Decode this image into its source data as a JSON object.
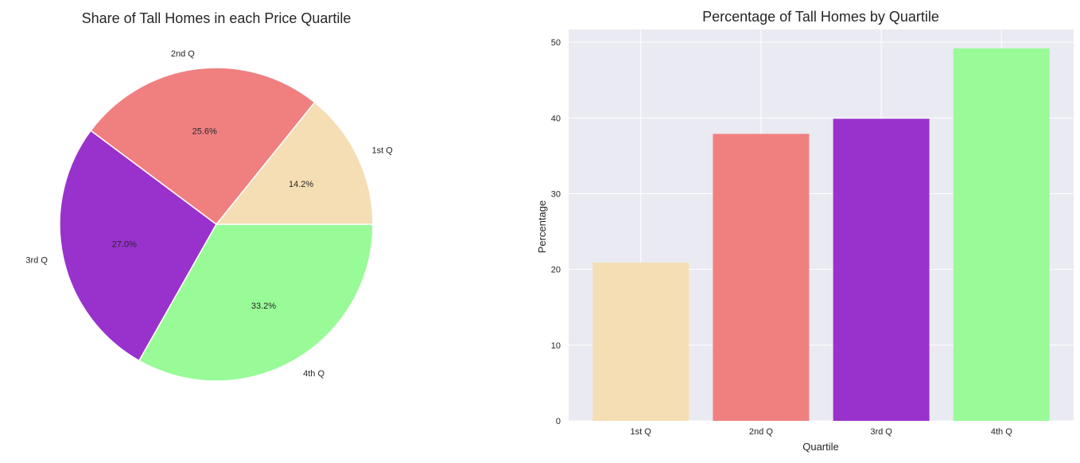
{
  "chart_data": [
    {
      "type": "pie",
      "title": "Share of Tall Homes in each Price Quartile",
      "labels": [
        "1st Q",
        "2nd Q",
        "3rd Q",
        "4th Q"
      ],
      "values": [
        14.2,
        25.6,
        27.0,
        33.2
      ],
      "pct_labels": [
        "14.2%",
        "25.6%",
        "27.0%",
        "33.2%"
      ],
      "colors": [
        "#f5deb3",
        "#f08080",
        "#9932cc",
        "#98fb98"
      ],
      "start_angle_deg": 0,
      "direction": "counterclockwise"
    },
    {
      "type": "bar",
      "title": "Percentage of Tall Homes by Quartile",
      "categories": [
        "1st Q",
        "2nd Q",
        "3rd Q",
        "4th Q"
      ],
      "values": [
        20.9,
        37.9,
        39.9,
        49.2
      ],
      "colors": [
        "#f5deb3",
        "#f08080",
        "#9932cc",
        "#98fb98"
      ],
      "xlabel": "Quartile",
      "ylabel": "Percentage",
      "ylim": [
        0,
        51.7
      ],
      "yticks": [
        0,
        10,
        20,
        30,
        40,
        50
      ],
      "ytick_labels": [
        "0",
        "10",
        "20",
        "30",
        "40",
        "50"
      ],
      "grid": true,
      "background": "#eaeaf2"
    }
  ]
}
